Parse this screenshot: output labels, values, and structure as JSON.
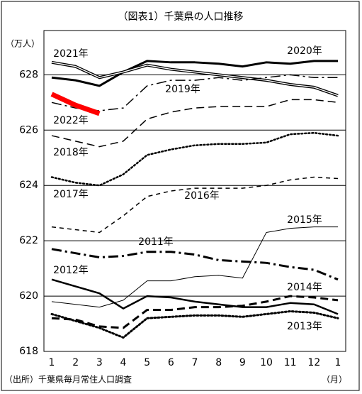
{
  "chart_data": {
    "type": "line",
    "title": "（図表1）千葉県の人口推移",
    "y_label": "（万人）",
    "x_label": "（月）",
    "source": "（出所）千葉県毎月常住人口調査",
    "categories": [
      "1",
      "2",
      "3",
      "4",
      "5",
      "6",
      "7",
      "8",
      "9",
      "10",
      "11",
      "12",
      "1"
    ],
    "ylim": [
      618,
      629.6
    ],
    "yticks": [
      618,
      620,
      622,
      624,
      626,
      628
    ],
    "grid": true,
    "series": [
      {
        "name": "2020年",
        "color": "#000000",
        "style": "solid",
        "width": 3,
        "values": [
          627.9,
          627.8,
          627.6,
          628.1,
          628.5,
          628.45,
          628.45,
          628.4,
          628.3,
          628.45,
          628.4,
          628.5,
          628.5
        ]
      },
      {
        "name": "2021年",
        "color": "#000000",
        "style": "double",
        "width": 4,
        "values": [
          628.45,
          628.3,
          627.9,
          628.1,
          628.35,
          628.2,
          628.1,
          628.0,
          627.9,
          627.8,
          627.65,
          627.55,
          627.25
        ]
      },
      {
        "name": "2019年",
        "color": "#000000",
        "style": "dashdot",
        "width": 1.5,
        "values": [
          627.0,
          626.8,
          626.7,
          626.8,
          627.6,
          627.8,
          627.8,
          627.9,
          627.8,
          627.9,
          628.0,
          627.9,
          627.9
        ]
      },
      {
        "name": "2022年",
        "color": "#ff0000",
        "style": "solid",
        "width": 7,
        "values": [
          627.3,
          626.9,
          626.6,
          null,
          null,
          null,
          null,
          null,
          null,
          null,
          null,
          null,
          null
        ]
      },
      {
        "name": "2018年",
        "color": "#000000",
        "style": "dash",
        "width": 1.5,
        "values": [
          625.8,
          625.6,
          625.4,
          625.6,
          626.4,
          626.65,
          626.8,
          626.85,
          626.85,
          626.85,
          627.1,
          627.1,
          627.0
        ]
      },
      {
        "name": "2017年",
        "color": "#000000",
        "style": "dot",
        "width": 2.5,
        "values": [
          624.3,
          624.1,
          624.0,
          624.4,
          625.1,
          625.3,
          625.45,
          625.5,
          625.5,
          625.55,
          625.85,
          625.9,
          625.8
        ]
      },
      {
        "name": "2016年",
        "color": "#000000",
        "style": "shortdash",
        "width": 1.5,
        "values": [
          622.5,
          622.4,
          622.3,
          622.9,
          623.6,
          623.8,
          623.9,
          623.9,
          623.9,
          624.0,
          624.2,
          624.3,
          624.25
        ]
      },
      {
        "name": "2015年",
        "color": "#000000",
        "style": "solid",
        "width": 1,
        "values": [
          619.8,
          619.7,
          619.6,
          619.85,
          620.55,
          620.55,
          620.7,
          620.75,
          620.65,
          622.3,
          622.45,
          622.5,
          622.5
        ]
      },
      {
        "name": "2011年",
        "color": "#000000",
        "style": "dashdot",
        "width": 3,
        "values": [
          621.7,
          621.55,
          621.4,
          621.45,
          621.6,
          621.6,
          621.5,
          621.3,
          621.25,
          621.2,
          621.05,
          620.95,
          620.6
        ]
      },
      {
        "name": "2012年",
        "color": "#000000",
        "style": "solid",
        "width": 2.5,
        "values": [
          620.6,
          620.35,
          620.1,
          619.55,
          620.0,
          619.95,
          619.8,
          619.7,
          619.6,
          619.6,
          619.75,
          619.7,
          619.35
        ]
      },
      {
        "name": "2014年",
        "color": "#000000",
        "style": "dash",
        "width": 3,
        "values": [
          619.2,
          619.15,
          618.9,
          618.85,
          619.5,
          619.5,
          619.6,
          619.6,
          619.65,
          619.8,
          620.0,
          619.95,
          619.85
        ]
      },
      {
        "name": "2013年",
        "color": "#000000",
        "style": "dot",
        "width": 3,
        "values": [
          619.35,
          619.1,
          618.85,
          618.5,
          619.2,
          619.25,
          619.3,
          619.3,
          619.25,
          619.35,
          619.45,
          619.4,
          619.2
        ]
      }
    ]
  }
}
